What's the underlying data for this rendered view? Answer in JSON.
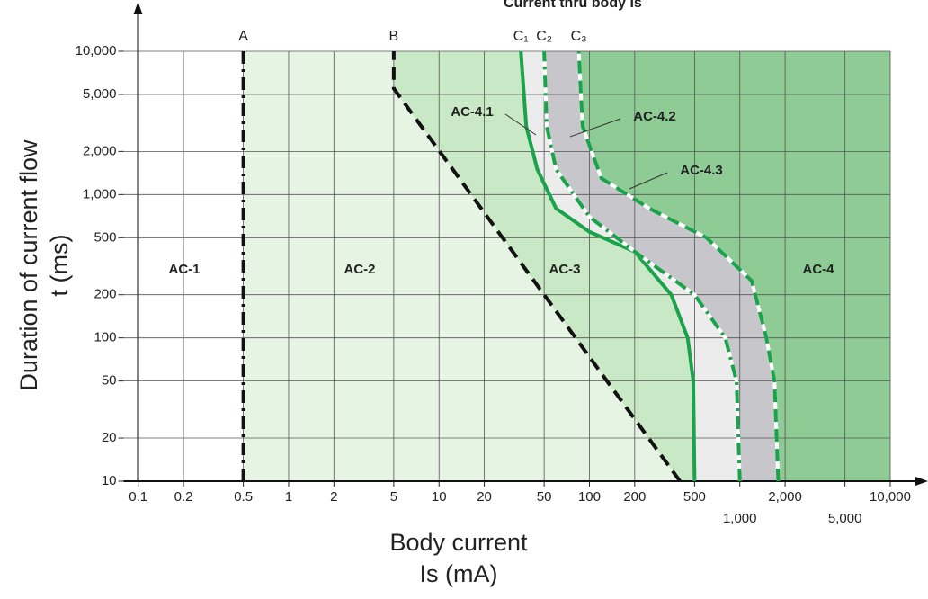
{
  "chart_data": {
    "type": "line",
    "title": "Current thru body Is",
    "x_label": [
      "Body current",
      "Is (mA)"
    ],
    "y_label": [
      "Duration of current flow",
      "t (ms)"
    ],
    "log_x": true,
    "log_y": true,
    "grid": true,
    "xlim": [
      0.08,
      10000
    ],
    "ylim": [
      10,
      10000
    ],
    "xticks": [
      0.1,
      0.2,
      0.5,
      1,
      2,
      5,
      10,
      20,
      50,
      100,
      200,
      500,
      {
        "value": 1000,
        "label": "1,000"
      },
      {
        "value": 2000,
        "label": "2,000"
      },
      {
        "value": 5000,
        "label": "5,000"
      },
      {
        "value": 10000,
        "label": "10,000"
      }
    ],
    "yticks": [
      10,
      20,
      50,
      100,
      200,
      500,
      {
        "value": 1000,
        "label": "1,000"
      },
      {
        "value": 2000,
        "label": "2,000"
      },
      {
        "value": 5000,
        "label": "5,000"
      },
      {
        "value": 10000,
        "label": "10,000"
      }
    ],
    "series": [
      {
        "name": "A",
        "color": "#111111",
        "style": "dashdot",
        "x": [
          0.5,
          0.5
        ],
        "values": [
          10,
          10000
        ]
      },
      {
        "name": "B",
        "color": "#111111",
        "style": "dash",
        "x": [
          400,
          5,
          5
        ],
        "values": [
          10,
          5500,
          10000
        ]
      },
      {
        "name": "C₁",
        "color": "#1aa34a",
        "style": "solid",
        "x": [
          500,
          490,
          450,
          350,
          200,
          100,
          60,
          45,
          38,
          35
        ],
        "values": [
          10,
          50,
          100,
          200,
          400,
          550,
          800,
          1500,
          3000,
          10000
        ]
      },
      {
        "name": "C₂",
        "color": "#1aa34a",
        "style": "dashdot",
        "x": [
          1000,
          950,
          800,
          500,
          200,
          100,
          60,
          52,
          50
        ],
        "values": [
          10,
          50,
          100,
          200,
          400,
          700,
          1500,
          3000,
          10000
        ]
      },
      {
        "name": "C₃",
        "color": "#1aa34a",
        "style": "dash",
        "x": [
          1800,
          1700,
          1500,
          1200,
          600,
          250,
          120,
          90,
          85
        ],
        "values": [
          10,
          50,
          100,
          250,
          500,
          800,
          1300,
          3000,
          10000
        ]
      }
    ],
    "zones": [
      {
        "name": "AC-1",
        "color": "#ffffff"
      },
      {
        "name": "AC-2",
        "color": "#e6f5e3"
      },
      {
        "name": "AC-3",
        "color": "#c9e8c5"
      },
      {
        "name": "AC-4.1",
        "color": "#ececec"
      },
      {
        "name": "AC-4.2",
        "color": "#c6c6cb"
      },
      {
        "name": "AC-4",
        "color": "#8ecb95"
      }
    ],
    "annotation": "AC-4.3"
  }
}
